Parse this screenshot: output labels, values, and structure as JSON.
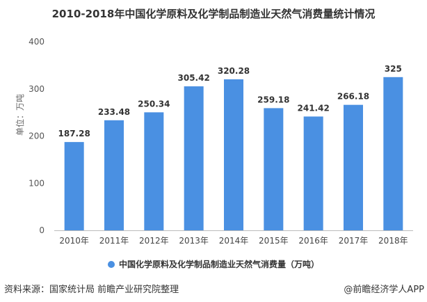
{
  "chart_data": {
    "type": "bar",
    "title": "2010-2018年中国化学原料及化学制品制造业天然气消费量统计情况",
    "ylabel": "单位：万吨",
    "xlabel": "",
    "categories": [
      "2010年",
      "2011年",
      "2012年",
      "2013年",
      "2014年",
      "2015年",
      "2016年",
      "2017年",
      "2018年"
    ],
    "series": [
      {
        "name": "中国化学原料及化学制品制造业天然气消费量（万吨）",
        "values": [
          187.28,
          233.48,
          250.34,
          305.42,
          320.28,
          259.18,
          241.42,
          266.18,
          325
        ],
        "labels": [
          "187.28",
          "233.48",
          "250.34",
          "305.42",
          "320.28",
          "259.18",
          "241.42",
          "266.18",
          "325"
        ]
      }
    ],
    "ylim": [
      0,
      400
    ],
    "yticks": [
      "0",
      "100",
      "200",
      "300",
      "400"
    ],
    "grid": false,
    "legend": "bottom",
    "colors": {
      "bar": "#4a90e2"
    }
  },
  "footer": {
    "source": "资料来源：国家统计局 前瞻产业研究院整理",
    "brand": "@前瞻经济学人APP"
  }
}
